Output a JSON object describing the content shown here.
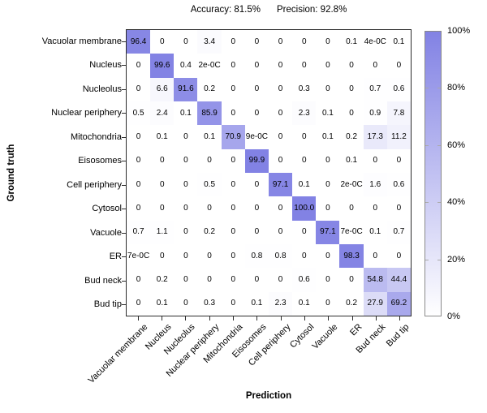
{
  "header": {
    "accuracy": "Accuracy: 81.5%",
    "precision": "Precision: 92.8%"
  },
  "chart_data": {
    "type": "heatmap",
    "title": "Accuracy: 81.5%  Precision: 92.8%",
    "xlabel": "Prediction",
    "ylabel": "Ground truth",
    "x_categories": [
      "Vacuolar membrane",
      "Nucleus",
      "Nucleolus",
      "Nuclear periphery",
      "Mitochondria",
      "Eisosomes",
      "Cell periphery",
      "Cytosol",
      "Vacuole",
      "ER",
      "Bud neck",
      "Bud tip"
    ],
    "y_categories": [
      "Vacuolar membrane",
      "Nucleus",
      "Nucleolus",
      "Nuclear periphery",
      "Mitochondria",
      "Eisosomes",
      "Cell periphery",
      "Cytosol",
      "Vacuole",
      "ER",
      "Bud neck",
      "Bud tip"
    ],
    "values_percent": [
      [
        "96.4",
        "0",
        "0",
        "3.4",
        "0",
        "0",
        "0",
        "0",
        "0",
        "0.1",
        "4e-0C",
        "0.1"
      ],
      [
        "0",
        "99.6",
        "0.4",
        "2e-0C",
        "0",
        "0",
        "0",
        "0",
        "0",
        "0",
        "0",
        "0"
      ],
      [
        "0",
        "6.6",
        "91.6",
        "0.2",
        "0",
        "0",
        "0",
        "0.3",
        "0",
        "0",
        "0.7",
        "0.6"
      ],
      [
        "0.5",
        "2.4",
        "0.1",
        "85.9",
        "0",
        "0",
        "0",
        "2.3",
        "0.1",
        "0",
        "0.9",
        "7.8"
      ],
      [
        "0",
        "0.1",
        "0",
        "0.1",
        "70.9",
        "9e-0C",
        "0",
        "0",
        "0.1",
        "0.2",
        "17.3",
        "11.2"
      ],
      [
        "0",
        "0",
        "0",
        "0",
        "0",
        "99.9",
        "0",
        "0",
        "0",
        "0.1",
        "0",
        "0"
      ],
      [
        "0",
        "0",
        "0",
        "0.5",
        "0",
        "0",
        "97.1",
        "0.1",
        "0",
        "2e-0C",
        "1.6",
        "0.6"
      ],
      [
        "0",
        "0",
        "0",
        "0",
        "0",
        "0",
        "0",
        "100.0",
        "0",
        "0",
        "0",
        "0"
      ],
      [
        "0.7",
        "1.1",
        "0",
        "0.2",
        "0",
        "0",
        "0",
        "0",
        "97.1",
        "7e-0C",
        "0.1",
        "0.7"
      ],
      [
        "7e-0C",
        "0",
        "0",
        "0",
        "0",
        "0.8",
        "0.8",
        "0",
        "0",
        "98.3",
        "0",
        "0"
      ],
      [
        "0",
        "0.2",
        "0",
        "0",
        "0",
        "0",
        "0",
        "0.6",
        "0",
        "0",
        "54.8",
        "44.4"
      ],
      [
        "0",
        "0.1",
        "0",
        "0.3",
        "0",
        "0.1",
        "2.3",
        "0.1",
        "0",
        "0.2",
        "27.9",
        "69.2"
      ]
    ],
    "value_range": [
      0,
      100
    ],
    "grid": false,
    "legend_position": "right-colorbar",
    "colorbar": {
      "ticks": [
        "100%",
        "80%",
        "60%",
        "40%",
        "20%",
        "0%"
      ],
      "max_color": "#8282e4",
      "min_color": "#ffffff"
    }
  }
}
